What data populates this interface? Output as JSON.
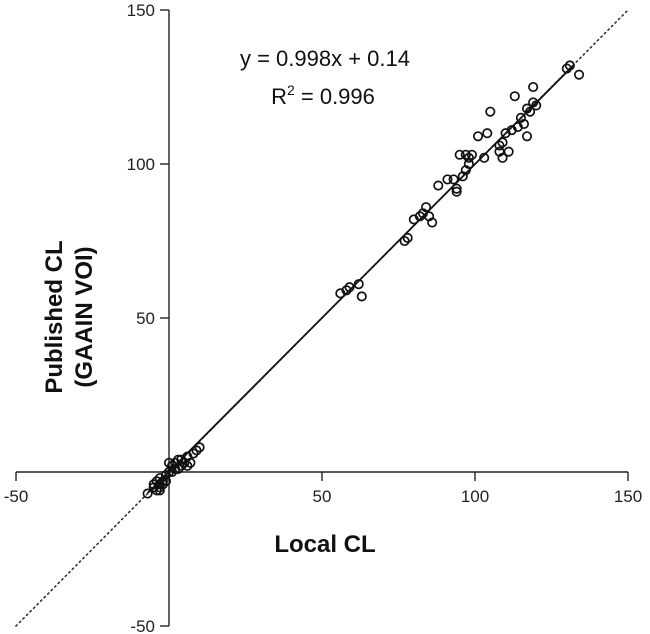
{
  "chart_data": {
    "type": "scatter",
    "xlabel": "Local CL",
    "ylabel_lines": [
      "Published CL",
      "(GAAIN VOI)"
    ],
    "xlim": [
      -50,
      150
    ],
    "ylim": [
      -50,
      150
    ],
    "xticks": [
      -50,
      0,
      50,
      100,
      150
    ],
    "yticks": [
      -50,
      0,
      50,
      100,
      150
    ],
    "xtick_labels": [
      "-50",
      "",
      "50",
      "100",
      "150"
    ],
    "ytick_labels": [
      "-50",
      "",
      "50",
      "100",
      "150"
    ],
    "grid": false,
    "annotation": {
      "equation": "y = 0.998x + 0.14",
      "r2_prefix": "R",
      "r2_sup": "2",
      "r2_suffix": " = 0.996"
    },
    "fit_line": {
      "slope": 0.998,
      "intercept": 0.14,
      "x_range": [
        -7,
        132
      ]
    },
    "identity_line": {
      "style": "dotted",
      "x_range": [
        -50,
        150
      ]
    },
    "points": [
      [
        -7,
        -7
      ],
      [
        -5,
        -5
      ],
      [
        -5,
        -4
      ],
      [
        -4,
        -3
      ],
      [
        -4,
        -6
      ],
      [
        -3,
        -4
      ],
      [
        -3,
        -6
      ],
      [
        -3,
        -5
      ],
      [
        -2,
        -3
      ],
      [
        -2,
        -4
      ],
      [
        -1,
        -3
      ],
      [
        -1,
        -1
      ],
      [
        0,
        0
      ],
      [
        1,
        0
      ],
      [
        1,
        2
      ],
      [
        2,
        1
      ],
      [
        2,
        3
      ],
      [
        3,
        1
      ],
      [
        4,
        2
      ],
      [
        4,
        4
      ],
      [
        5,
        3
      ],
      [
        6,
        5
      ],
      [
        6,
        2
      ],
      [
        7,
        3
      ],
      [
        8,
        6
      ],
      [
        9,
        7
      ],
      [
        10,
        8
      ],
      [
        -3,
        -2
      ],
      [
        0,
        3
      ],
      [
        3,
        4
      ],
      [
        56,
        58
      ],
      [
        58,
        59
      ],
      [
        59,
        60
      ],
      [
        62,
        61
      ],
      [
        63,
        57
      ],
      [
        77,
        75
      ],
      [
        78,
        76
      ],
      [
        80,
        82
      ],
      [
        82,
        83
      ],
      [
        83,
        84
      ],
      [
        84,
        86
      ],
      [
        85,
        83
      ],
      [
        86,
        81
      ],
      [
        88,
        93
      ],
      [
        91,
        95
      ],
      [
        93,
        95
      ],
      [
        94,
        91
      ],
      [
        94,
        92
      ],
      [
        95,
        103
      ],
      [
        96,
        96
      ],
      [
        97,
        98
      ],
      [
        97,
        103
      ],
      [
        98,
        100
      ],
      [
        98,
        102
      ],
      [
        99,
        103
      ],
      [
        101,
        109
      ],
      [
        103,
        102
      ],
      [
        104,
        110
      ],
      [
        105,
        117
      ],
      [
        108,
        104
      ],
      [
        108,
        106
      ],
      [
        109,
        102
      ],
      [
        109,
        107
      ],
      [
        110,
        110
      ],
      [
        111,
        104
      ],
      [
        112,
        111
      ],
      [
        113,
        122
      ],
      [
        114,
        112
      ],
      [
        115,
        115
      ],
      [
        116,
        113
      ],
      [
        117,
        109
      ],
      [
        117,
        118
      ],
      [
        118,
        117
      ],
      [
        119,
        125
      ],
      [
        119,
        120
      ],
      [
        120,
        119
      ],
      [
        130,
        131
      ],
      [
        131,
        132
      ],
      [
        134,
        129
      ]
    ]
  }
}
